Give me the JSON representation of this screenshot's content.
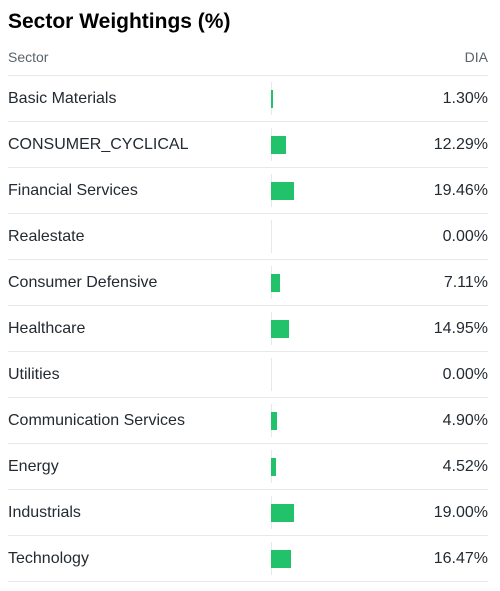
{
  "title": "Sector Weightings (%)",
  "header": {
    "sector": "Sector",
    "fund": "DIA"
  },
  "colors": {
    "bar": "#21c26a",
    "divider": "#e6e8eb",
    "text": "#232a31",
    "muted": "#5b636a"
  },
  "rows": [
    {
      "sector": "Basic Materials",
      "value": "1.30%",
      "weight": 1.3
    },
    {
      "sector": "CONSUMER_CYCLICAL",
      "value": "12.29%",
      "weight": 12.29
    },
    {
      "sector": "Financial Services",
      "value": "19.46%",
      "weight": 19.46
    },
    {
      "sector": "Realestate",
      "value": "0.00%",
      "weight": 0.0
    },
    {
      "sector": "Consumer Defensive",
      "value": "7.11%",
      "weight": 7.11
    },
    {
      "sector": "Healthcare",
      "value": "14.95%",
      "weight": 14.95
    },
    {
      "sector": "Utilities",
      "value": "0.00%",
      "weight": 0.0
    },
    {
      "sector": "Communication Services",
      "value": "4.90%",
      "weight": 4.9
    },
    {
      "sector": "Energy",
      "value": "4.52%",
      "weight": 4.52
    },
    {
      "sector": "Industrials",
      "value": "19.00%",
      "weight": 19.0
    },
    {
      "sector": "Technology",
      "value": "16.47%",
      "weight": 16.47
    }
  ]
}
